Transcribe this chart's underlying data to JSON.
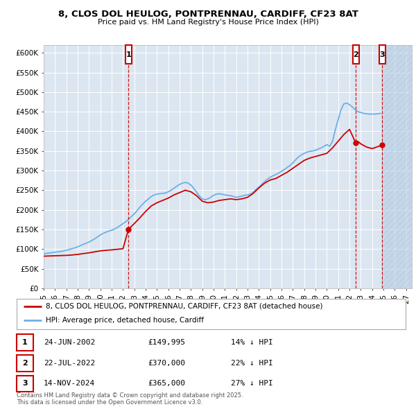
{
  "title_line1": "8, CLOS DOL HEULOG, PONTPRENNAU, CARDIFF, CF23 8AT",
  "title_line2": "Price paid vs. HM Land Registry's House Price Index (HPI)",
  "ylim": [
    0,
    620000
  ],
  "yticks": [
    0,
    50000,
    100000,
    150000,
    200000,
    250000,
    300000,
    350000,
    400000,
    450000,
    500000,
    550000,
    600000
  ],
  "ytick_labels": [
    "£0",
    "£50K",
    "£100K",
    "£150K",
    "£200K",
    "£250K",
    "£300K",
    "£350K",
    "£400K",
    "£450K",
    "£500K",
    "£550K",
    "£600K"
  ],
  "xlim_start": 1995.0,
  "xlim_end": 2027.5,
  "plot_bg_color": "#dce6f1",
  "grid_color": "#ffffff",
  "hpi_color": "#6ab0e8",
  "price_color": "#cc0000",
  "hatch_color": "#b0c8e0",
  "sale_markers": [
    {
      "label": "1",
      "date": 2002.479,
      "price": 149995
    },
    {
      "label": "2",
      "date": 2022.554,
      "price": 370000
    },
    {
      "label": "3",
      "date": 2024.873,
      "price": 365000
    }
  ],
  "legend_entries": [
    {
      "color": "#cc0000",
      "text": "8, CLOS DOL HEULOG, PONTPRENNAU, CARDIFF, CF23 8AT (detached house)"
    },
    {
      "color": "#6ab0e8",
      "text": "HPI: Average price, detached house, Cardiff"
    }
  ],
  "table_rows": [
    {
      "label": "1",
      "date": "24-JUN-2002",
      "price": "£149,995",
      "note": "14% ↓ HPI"
    },
    {
      "label": "2",
      "date": "22-JUL-2022",
      "price": "£370,000",
      "note": "22% ↓ HPI"
    },
    {
      "label": "3",
      "date": "14-NOV-2024",
      "price": "£365,000",
      "note": "27% ↓ HPI"
    }
  ],
  "footnote": "Contains HM Land Registry data © Crown copyright and database right 2025.\nThis data is licensed under the Open Government Licence v3.0.",
  "xtick_years": [
    1995,
    1996,
    1997,
    1998,
    1999,
    2000,
    2001,
    2002,
    2003,
    2004,
    2005,
    2006,
    2007,
    2008,
    2009,
    2010,
    2011,
    2012,
    2013,
    2014,
    2015,
    2016,
    2017,
    2018,
    2019,
    2020,
    2021,
    2022,
    2023,
    2024,
    2025,
    2026,
    2027
  ],
  "hpi_data_x": [
    1995.0,
    1995.25,
    1995.5,
    1995.75,
    1996.0,
    1996.25,
    1996.5,
    1996.75,
    1997.0,
    1997.25,
    1997.5,
    1997.75,
    1998.0,
    1998.25,
    1998.5,
    1998.75,
    1999.0,
    1999.25,
    1999.5,
    1999.75,
    2000.0,
    2000.25,
    2000.5,
    2000.75,
    2001.0,
    2001.25,
    2001.5,
    2001.75,
    2002.0,
    2002.25,
    2002.5,
    2002.75,
    2003.0,
    2003.25,
    2003.5,
    2003.75,
    2004.0,
    2004.25,
    2004.5,
    2004.75,
    2005.0,
    2005.25,
    2005.5,
    2005.75,
    2006.0,
    2006.25,
    2006.5,
    2006.75,
    2007.0,
    2007.25,
    2007.5,
    2007.75,
    2008.0,
    2008.25,
    2008.5,
    2008.75,
    2009.0,
    2009.25,
    2009.5,
    2009.75,
    2010.0,
    2010.25,
    2010.5,
    2010.75,
    2011.0,
    2011.25,
    2011.5,
    2011.75,
    2012.0,
    2012.25,
    2012.5,
    2012.75,
    2013.0,
    2013.25,
    2013.5,
    2013.75,
    2014.0,
    2014.25,
    2014.5,
    2014.75,
    2015.0,
    2015.25,
    2015.5,
    2015.75,
    2016.0,
    2016.25,
    2016.5,
    2016.75,
    2017.0,
    2017.25,
    2017.5,
    2017.75,
    2018.0,
    2018.25,
    2018.5,
    2018.75,
    2019.0,
    2019.25,
    2019.5,
    2019.75,
    2020.0,
    2020.25,
    2020.5,
    2020.75,
    2021.0,
    2021.25,
    2021.5,
    2021.75,
    2022.0,
    2022.25,
    2022.5,
    2022.75,
    2023.0,
    2023.25,
    2023.5,
    2023.75,
    2024.0,
    2024.25,
    2024.5,
    2024.75
  ],
  "hpi_data_y": [
    88000,
    89000,
    90000,
    91000,
    92000,
    93000,
    94000,
    95500,
    97000,
    99000,
    101000,
    103000,
    106000,
    109000,
    112000,
    115000,
    118000,
    122000,
    126000,
    131000,
    136000,
    140000,
    143000,
    146000,
    148000,
    151000,
    155000,
    160000,
    165000,
    170000,
    176000,
    183000,
    190000,
    198000,
    207000,
    215000,
    222000,
    228000,
    234000,
    238000,
    240000,
    241000,
    242000,
    243000,
    246000,
    250000,
    255000,
    260000,
    265000,
    268000,
    270000,
    268000,
    263000,
    255000,
    245000,
    235000,
    228000,
    226000,
    228000,
    232000,
    237000,
    240000,
    241000,
    240000,
    238000,
    237000,
    236000,
    234000,
    232000,
    233000,
    235000,
    237000,
    238000,
    240000,
    245000,
    252000,
    258000,
    265000,
    272000,
    278000,
    283000,
    287000,
    290000,
    294000,
    298000,
    303000,
    308000,
    313000,
    320000,
    328000,
    335000,
    340000,
    344000,
    347000,
    349000,
    350000,
    352000,
    355000,
    358000,
    362000,
    366000,
    362000,
    375000,
    405000,
    430000,
    455000,
    470000,
    472000,
    468000,
    462000,
    455000,
    450000,
    448000,
    446000,
    445000,
    444000,
    444000,
    444000,
    445000,
    446000
  ],
  "price_data_x": [
    1995.0,
    1995.5,
    1996.0,
    1996.5,
    1997.0,
    1997.5,
    1998.0,
    1998.5,
    1999.0,
    1999.5,
    2000.0,
    2000.5,
    2001.0,
    2001.5,
    2002.0,
    2002.479,
    2002.75,
    2003.0,
    2003.5,
    2004.0,
    2004.5,
    2005.0,
    2005.5,
    2006.0,
    2006.5,
    2007.0,
    2007.5,
    2008.0,
    2008.5,
    2009.0,
    2009.5,
    2010.0,
    2010.5,
    2011.0,
    2011.5,
    2012.0,
    2012.5,
    2013.0,
    2013.5,
    2014.0,
    2014.5,
    2015.0,
    2015.5,
    2016.0,
    2016.5,
    2017.0,
    2017.5,
    2018.0,
    2018.5,
    2019.0,
    2019.5,
    2020.0,
    2020.5,
    2021.0,
    2021.5,
    2022.0,
    2022.554,
    2022.75,
    2023.0,
    2023.5,
    2024.0,
    2024.873
  ],
  "price_data_y": [
    82000,
    82500,
    83000,
    83500,
    84000,
    85000,
    86500,
    88500,
    90500,
    93000,
    95500,
    97000,
    98000,
    99500,
    101000,
    149995,
    158000,
    165000,
    180000,
    196000,
    210000,
    218000,
    224000,
    230000,
    238000,
    244000,
    250000,
    246000,
    236000,
    222000,
    218000,
    220000,
    224000,
    226000,
    228000,
    226000,
    228000,
    232000,
    242000,
    256000,
    268000,
    276000,
    280000,
    288000,
    296000,
    306000,
    316000,
    326000,
    332000,
    336000,
    340000,
    344000,
    358000,
    375000,
    392000,
    405000,
    370000,
    374000,
    368000,
    360000,
    356000,
    365000
  ]
}
